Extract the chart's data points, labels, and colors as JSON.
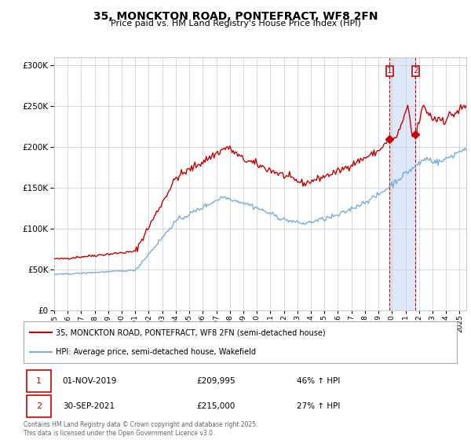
{
  "title": "35, MONCKTON ROAD, PONTEFRACT, WF8 2FN",
  "subtitle": "Price paid vs. HM Land Registry's House Price Index (HPI)",
  "property_label": "35, MONCKTON ROAD, PONTEFRACT, WF8 2FN (semi-detached house)",
  "hpi_label": "HPI: Average price, semi-detached house, Wakefield",
  "sale1_date": "01-NOV-2019",
  "sale1_price": "£209,995",
  "sale1_hpi": "46% ↑ HPI",
  "sale2_date": "30-SEP-2021",
  "sale2_price": "£215,000",
  "sale2_hpi": "27% ↑ HPI",
  "footer": "Contains HM Land Registry data © Crown copyright and database right 2025.\nThis data is licensed under the Open Government Licence v3.0.",
  "property_color": "#cc0000",
  "hpi_color": "#7aaddd",
  "plot_bg_color": "#ffffff",
  "shade_color": "#dde8f8",
  "ylim": [
    0,
    310000
  ],
  "sale1_x": 2019.83,
  "sale1_y": 209995,
  "sale2_x": 2021.75,
  "sale2_y": 215000,
  "xmin": 1995,
  "xmax": 2025.5
}
